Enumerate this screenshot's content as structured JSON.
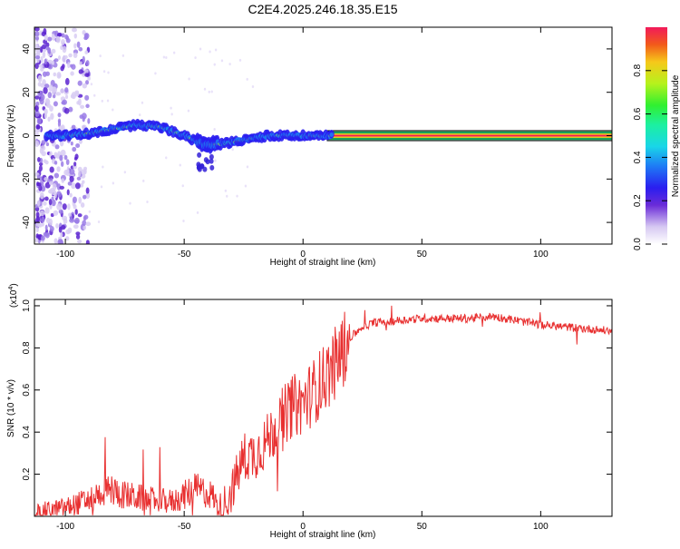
{
  "chart_data": [
    {
      "type": "heatmap",
      "title": "C2E4.2025.246.18.35.E15",
      "xlabel": "Height of straight line (km)",
      "ylabel": "Frequency (Hz)",
      "xlim": [
        -113,
        130
      ],
      "ylim": [
        -50,
        50
      ],
      "xticks": [
        -100,
        -50,
        0,
        50,
        100
      ],
      "yticks": [
        40,
        20,
        0,
        -20,
        -40
      ],
      "colorbar": {
        "label": "Normalized spectral amplitude",
        "range": [
          0,
          1
        ],
        "ticks": [
          0.0,
          0.2,
          0.4,
          0.6,
          0.8
        ],
        "tick_labels": [
          "0.0",
          "0.2",
          "0.4",
          "0.6",
          "0.8"
        ]
      },
      "ridge": {
        "description_values": "dominant frequency (Hz) vs height (km)",
        "x": [
          -110,
          -100,
          -90,
          -80,
          -70,
          -60,
          -50,
          -42,
          -35,
          -25,
          -15,
          0,
          10,
          130
        ],
        "y": [
          0,
          0,
          1,
          3,
          5,
          4,
          0,
          -4,
          -4,
          -2,
          0,
          0,
          0,
          0
        ]
      }
    },
    {
      "type": "line",
      "xlabel": "Height of straight line (km)",
      "ylabel": "SNR (10 * v/v)",
      "y_multiplier": "(x10",
      "y_multiplier_exp": "4",
      "xlim": [
        -113,
        130
      ],
      "ylim": [
        0,
        1.03
      ],
      "xticks": [
        -100,
        -50,
        0,
        50,
        100
      ],
      "yticks": [
        0.2,
        0.4,
        0.6,
        0.8,
        1.0
      ],
      "series": [
        {
          "name": "SNR",
          "color": "#e83030",
          "x": [
            -113,
            -100,
            -90,
            -82,
            -75,
            -65,
            -55,
            -45,
            -38,
            -35,
            -30,
            -25,
            -20,
            -15,
            -10,
            -5,
            0,
            5,
            10,
            15,
            20,
            25,
            30,
            40,
            50,
            60,
            70,
            80,
            90,
            100,
            110,
            120,
            130
          ],
          "y": [
            0.02,
            0.04,
            0.08,
            0.13,
            0.1,
            0.08,
            0.07,
            0.13,
            0.1,
            0.02,
            0.12,
            0.28,
            0.3,
            0.36,
            0.45,
            0.52,
            0.54,
            0.6,
            0.67,
            0.75,
            0.85,
            0.9,
            0.92,
            0.93,
            0.94,
            0.94,
            0.94,
            0.95,
            0.93,
            0.91,
            0.9,
            0.89,
            0.88
          ]
        }
      ]
    }
  ],
  "colors": {
    "line": "#e83030",
    "axis": "#000000"
  }
}
